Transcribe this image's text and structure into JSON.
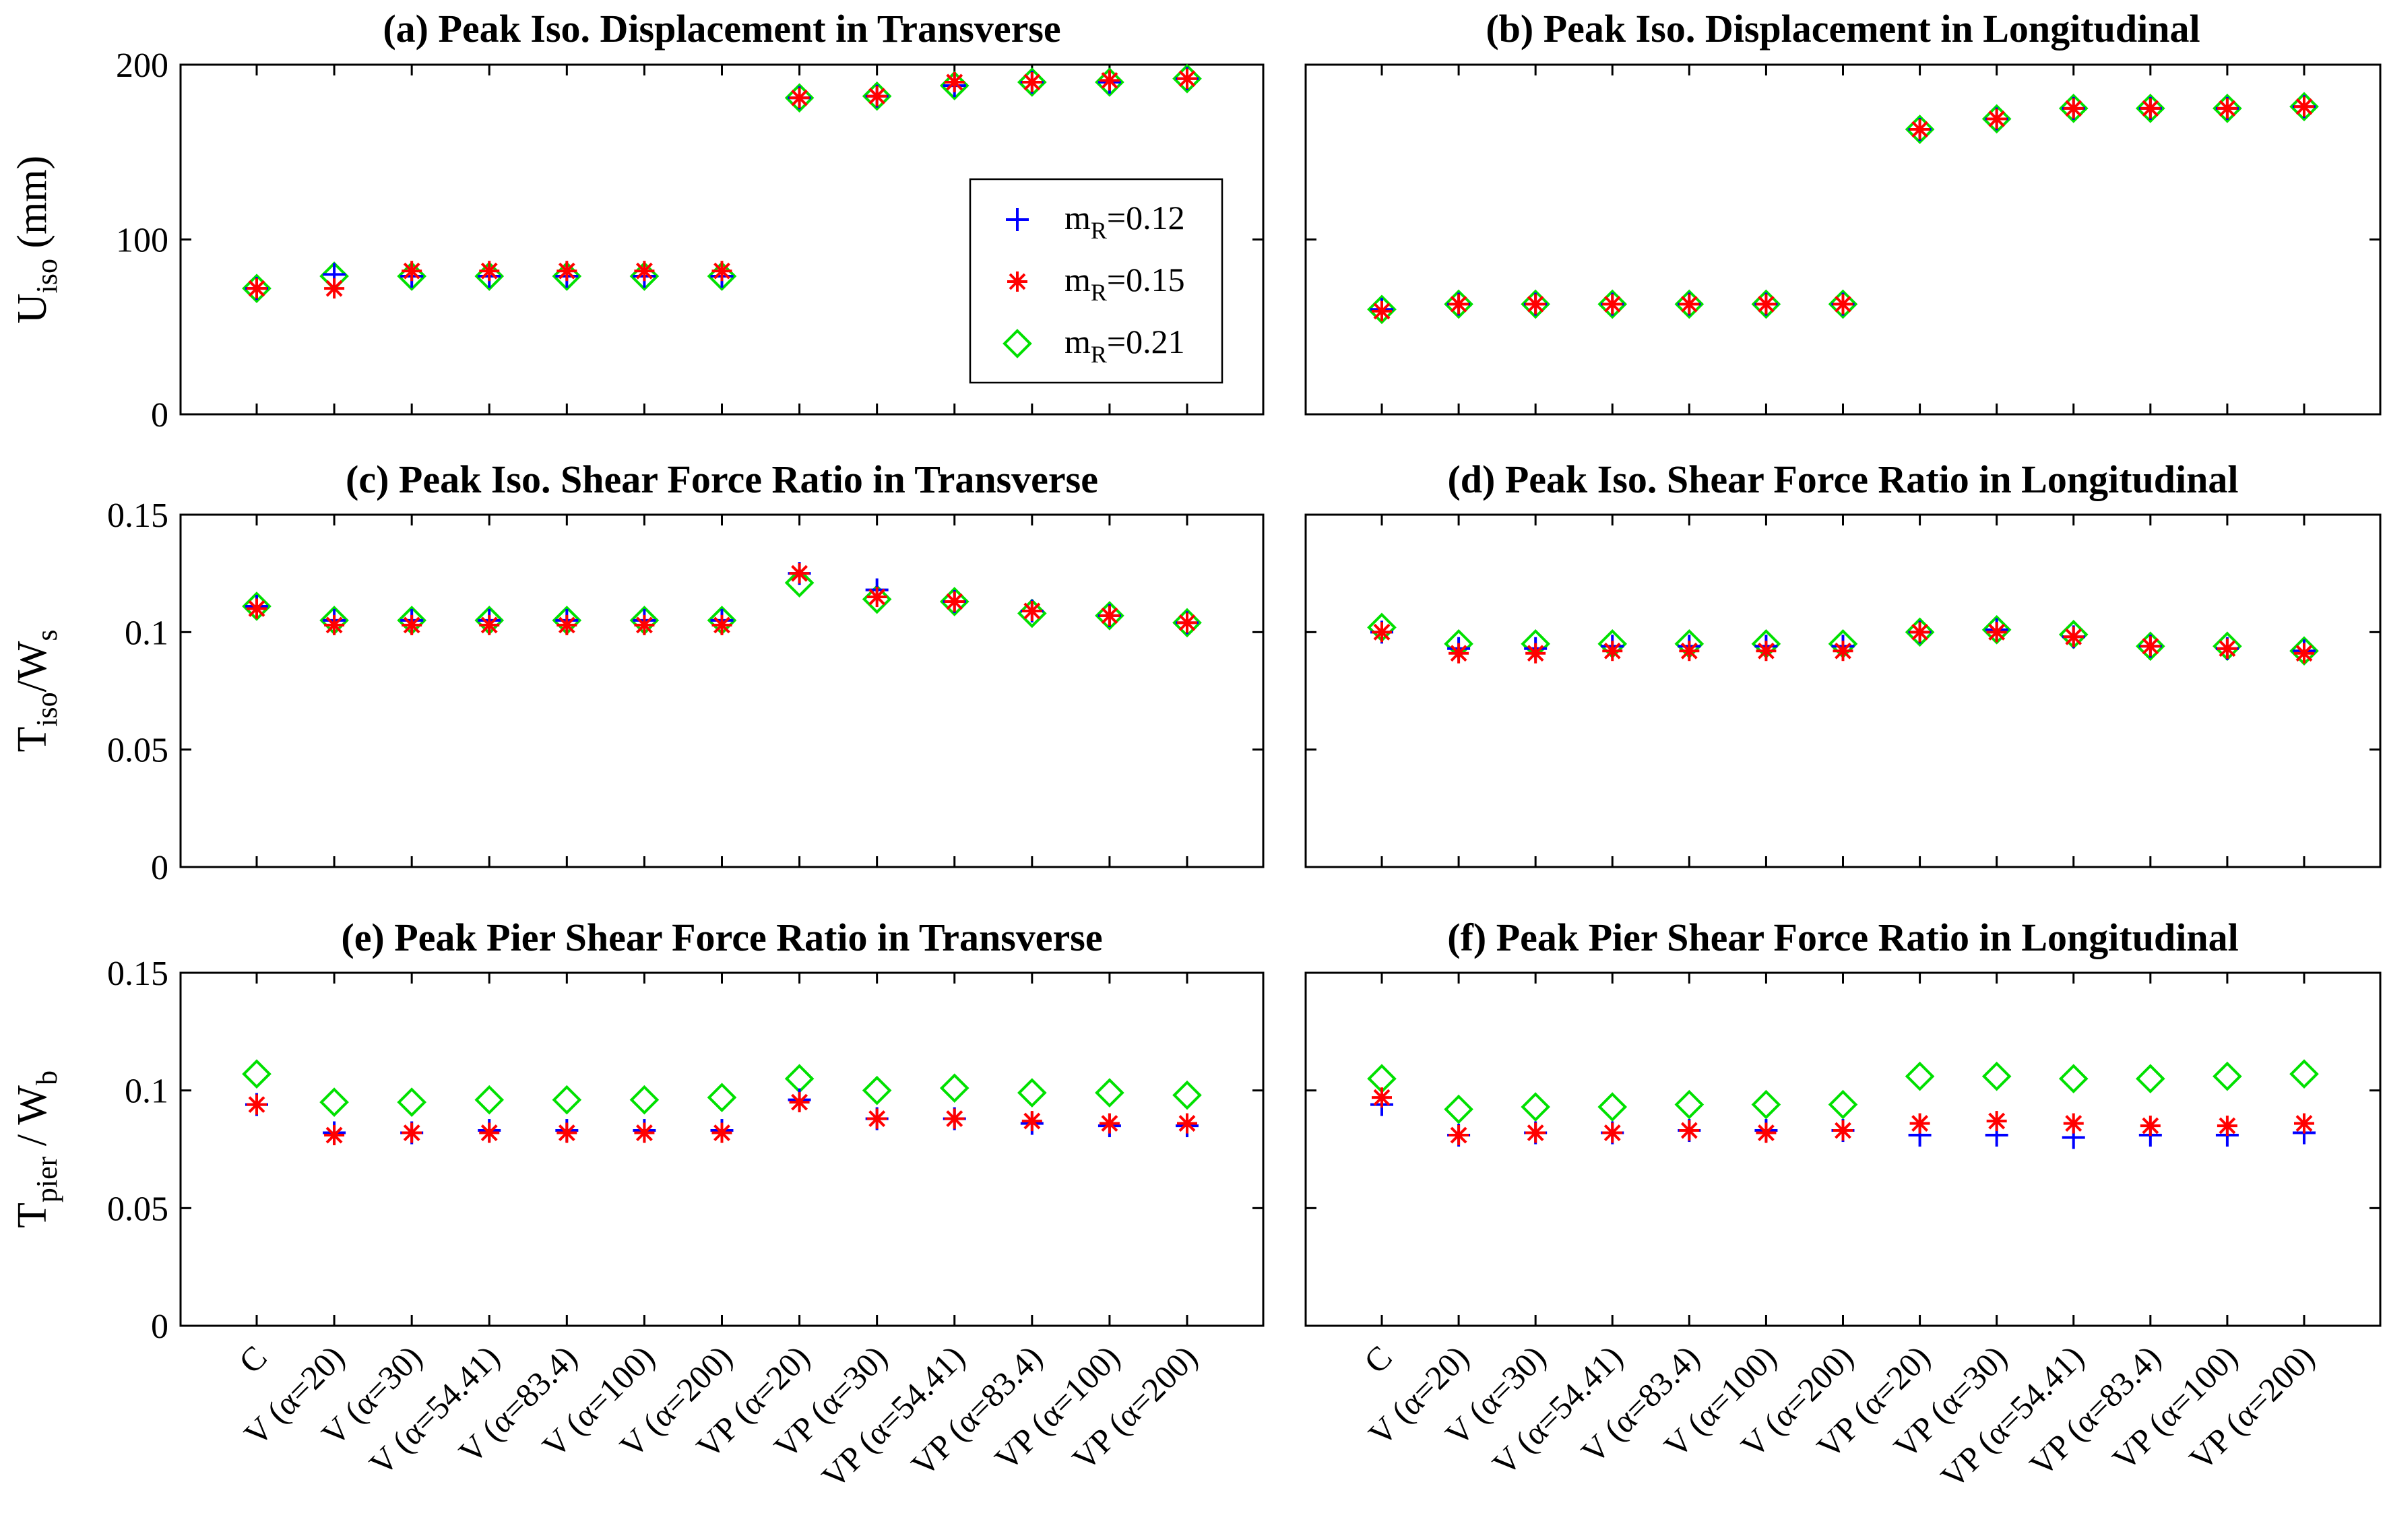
{
  "colors": {
    "m012": "#0000ff",
    "m015": "#ff0000",
    "m021": "#00e000",
    "axis": "#000000"
  },
  "categories": [
    "C",
    "V (α=20)",
    "V (α=30)",
    "V (α=54.41)",
    "V (α=83.4)",
    "V (α=100)",
    "V (α=200)",
    "VP (α=20)",
    "VP (α=30)",
    "VP (α=54.41)",
    "VP (α=83.4)",
    "VP (α=100)",
    "VP (α=200)"
  ],
  "legend": [
    {
      "base": "m",
      "sub": "R",
      "text": "=0.12",
      "marker": "plus"
    },
    {
      "base": "m",
      "sub": "R",
      "text": "=0.15",
      "marker": "star"
    },
    {
      "base": "m",
      "sub": "R",
      "text": "=0.21",
      "marker": "diamond"
    }
  ],
  "rows": [
    {
      "ylabel": {
        "base": "U",
        "sub": "iso",
        "rest": " (mm)"
      },
      "yticks": [
        "0",
        "100",
        "200"
      ]
    },
    {
      "ylabel": {
        "base": "T",
        "sub": "iso",
        "rest": "/W",
        "sub2": "s"
      },
      "yticks": [
        "0",
        "0.05",
        "0.1",
        "0.15"
      ]
    },
    {
      "ylabel": {
        "base": "T",
        "sub": "pier",
        "rest": " / W",
        "sub2": "b"
      },
      "yticks": [
        "0",
        "0.05",
        "0.1",
        "0.15"
      ]
    }
  ],
  "chart_data": [
    {
      "type": "scatter",
      "title": "(a) Peak  Iso. Displacement in Transverse",
      "ylim": [
        0,
        200
      ],
      "series": [
        {
          "name": "mR=0.12",
          "values": [
            72,
            80,
            79,
            79,
            79,
            79,
            79,
            181,
            182,
            188,
            190,
            190,
            192
          ]
        },
        {
          "name": "mR=0.15",
          "values": [
            72,
            72,
            82,
            82,
            82,
            82,
            82,
            181,
            182,
            190,
            190,
            191,
            192
          ]
        },
        {
          "name": "mR=0.21",
          "values": [
            72,
            79,
            79,
            79,
            79,
            79,
            79,
            181,
            182,
            188,
            190,
            190,
            192
          ]
        }
      ]
    },
    {
      "type": "scatter",
      "title": "(b) Peak Iso. Displacement in Longitudinal",
      "ylim": [
        0,
        200
      ],
      "series": [
        {
          "name": "mR=0.12",
          "values": [
            60,
            63,
            63,
            63,
            63,
            63,
            63,
            163,
            169,
            175,
            175,
            175,
            176
          ]
        },
        {
          "name": "mR=0.15",
          "values": [
            59,
            63,
            63,
            63,
            63,
            63,
            63,
            163,
            169,
            175,
            175,
            175,
            176
          ]
        },
        {
          "name": "mR=0.21",
          "values": [
            60,
            63,
            63,
            63,
            63,
            63,
            63,
            163,
            169,
            175,
            175,
            175,
            176
          ]
        }
      ]
    },
    {
      "type": "scatter",
      "title": "(c) Peak Iso. Shear Force Ratio in Transverse",
      "ylim": [
        0,
        0.15
      ],
      "series": [
        {
          "name": "mR=0.12",
          "values": [
            0.111,
            0.105,
            0.105,
            0.105,
            0.105,
            0.105,
            0.105,
            0.125,
            0.118,
            0.113,
            0.109,
            0.107,
            0.104
          ]
        },
        {
          "name": "mR=0.15",
          "values": [
            0.11,
            0.103,
            0.103,
            0.103,
            0.103,
            0.103,
            0.103,
            0.125,
            0.115,
            0.113,
            0.109,
            0.107,
            0.104
          ]
        },
        {
          "name": "mR=0.21",
          "values": [
            0.111,
            0.105,
            0.105,
            0.105,
            0.105,
            0.105,
            0.105,
            0.121,
            0.114,
            0.113,
            0.108,
            0.107,
            0.104
          ]
        }
      ]
    },
    {
      "type": "scatter",
      "title": "(d) Peak Iso. Shear Force Ratio in Longitudinal",
      "ylim": [
        0,
        0.15
      ],
      "series": [
        {
          "name": "mR=0.12",
          "values": [
            0.1,
            0.093,
            0.093,
            0.094,
            0.094,
            0.094,
            0.094,
            0.1,
            0.101,
            0.098,
            0.094,
            0.093,
            0.092
          ]
        },
        {
          "name": "mR=0.15",
          "values": [
            0.1,
            0.091,
            0.091,
            0.092,
            0.092,
            0.092,
            0.092,
            0.1,
            0.1,
            0.098,
            0.094,
            0.093,
            0.091
          ]
        },
        {
          "name": "mR=0.21",
          "values": [
            0.102,
            0.095,
            0.095,
            0.095,
            0.095,
            0.095,
            0.095,
            0.1,
            0.101,
            0.099,
            0.094,
            0.094,
            0.092
          ]
        }
      ]
    },
    {
      "type": "scatter",
      "title": "(e) Peak Pier Shear Force Ratio in Transverse",
      "ylim": [
        0,
        0.15
      ],
      "series": [
        {
          "name": "mR=0.12",
          "values": [
            0.094,
            0.082,
            0.082,
            0.083,
            0.083,
            0.083,
            0.083,
            0.096,
            0.088,
            0.088,
            0.086,
            0.085,
            0.085
          ]
        },
        {
          "name": "mR=0.15",
          "values": [
            0.094,
            0.081,
            0.082,
            0.082,
            0.082,
            0.082,
            0.082,
            0.095,
            0.088,
            0.088,
            0.087,
            0.086,
            0.086
          ]
        },
        {
          "name": "mR=0.21",
          "values": [
            0.107,
            0.095,
            0.095,
            0.096,
            0.096,
            0.096,
            0.097,
            0.105,
            0.1,
            0.101,
            0.099,
            0.099,
            0.098
          ]
        }
      ]
    },
    {
      "type": "scatter",
      "title": "(f) Peak Pier Shear Force Ratio in Longitudinal",
      "ylim": [
        0,
        0.15
      ],
      "series": [
        {
          "name": "mR=0.12",
          "values": [
            0.094,
            0.081,
            0.082,
            0.082,
            0.083,
            0.083,
            0.083,
            0.081,
            0.081,
            0.08,
            0.081,
            0.081,
            0.082
          ]
        },
        {
          "name": "mR=0.15",
          "values": [
            0.097,
            0.081,
            0.082,
            0.082,
            0.083,
            0.082,
            0.083,
            0.086,
            0.087,
            0.086,
            0.085,
            0.085,
            0.086
          ]
        },
        {
          "name": "mR=0.21",
          "values": [
            0.105,
            0.092,
            0.093,
            0.093,
            0.094,
            0.094,
            0.094,
            0.106,
            0.106,
            0.105,
            0.105,
            0.106,
            0.107
          ]
        }
      ]
    }
  ]
}
